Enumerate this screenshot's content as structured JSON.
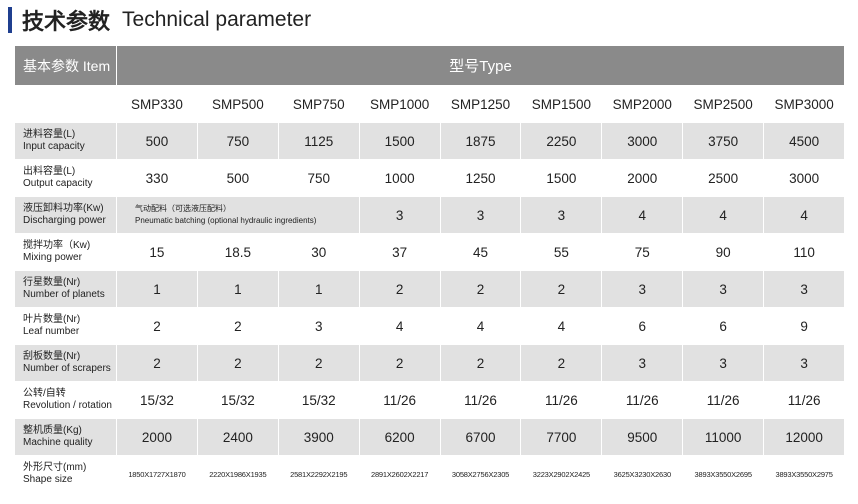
{
  "title": {
    "cn": "技术参数",
    "en": "Technical parameter"
  },
  "header": {
    "item_label": "基本参数 Item",
    "type_label": "型号Type"
  },
  "models": [
    "SMP330",
    "SMP500",
    "SMP750",
    "SMP1000",
    "SMP1250",
    "SMP1500",
    "SMP2000",
    "SMP2500",
    "SMP3000"
  ],
  "rows": [
    {
      "cn": "进料容量(L)",
      "en": "Input capacity",
      "values": [
        "500",
        "750",
        "1125",
        "1500",
        "1875",
        "2250",
        "3000",
        "3750",
        "4500"
      ]
    },
    {
      "cn": "出料容量(L)",
      "en": "Output capacity",
      "values": [
        "330",
        "500",
        "750",
        "1000",
        "1250",
        "1500",
        "2000",
        "2500",
        "3000"
      ]
    },
    {
      "cn": "液压卸料功率(Kw)",
      "en": "Discharging power",
      "note_cn": "气动配料（可选液压配料）",
      "note_en": "Pneumatic batching (optional hydraulic ingredients)",
      "values": [
        "3",
        "3",
        "3",
        "4",
        "4",
        "4"
      ]
    },
    {
      "cn": "搅拌功率（Kw)",
      "en": "Mixing power",
      "values": [
        "15",
        "18.5",
        "30",
        "37",
        "45",
        "55",
        "75",
        "90",
        "110"
      ]
    },
    {
      "cn": "行星数量(Nr)",
      "en": "Number of planets",
      "values": [
        "1",
        "1",
        "1",
        "2",
        "2",
        "2",
        "3",
        "3",
        "3"
      ]
    },
    {
      "cn": "叶片数量(Nr)",
      "en": "Leaf number",
      "values": [
        "2",
        "2",
        "3",
        "4",
        "4",
        "4",
        "6",
        "6",
        "9"
      ]
    },
    {
      "cn": "刮板数量(Nr)",
      "en": "Number of scrapers",
      "values": [
        "2",
        "2",
        "2",
        "2",
        "2",
        "2",
        "3",
        "3",
        "3"
      ]
    },
    {
      "cn": "公转/自转",
      "en": "Revolution / rotation",
      "values": [
        "15/32",
        "15/32",
        "15/32",
        "11/26",
        "11/26",
        "11/26",
        "11/26",
        "11/26",
        "11/26"
      ]
    },
    {
      "cn": "整机质量(Kg)",
      "en": "Machine quality",
      "values": [
        "2000",
        "2400",
        "3900",
        "6200",
        "6700",
        "7700",
        "9500",
        "11000",
        "12000"
      ]
    },
    {
      "cn": "外形尺寸(mm)",
      "en": "Shape size",
      "values": [
        "1850X1727X1870",
        "2220X1986X1935",
        "2581X2292X2195",
        "2891X2602X2217",
        "3058X2756X2305",
        "3223X2902X2425",
        "3625X3230X2630",
        "3893X3550X2695",
        "3893X3550X2975"
      ]
    }
  ]
}
